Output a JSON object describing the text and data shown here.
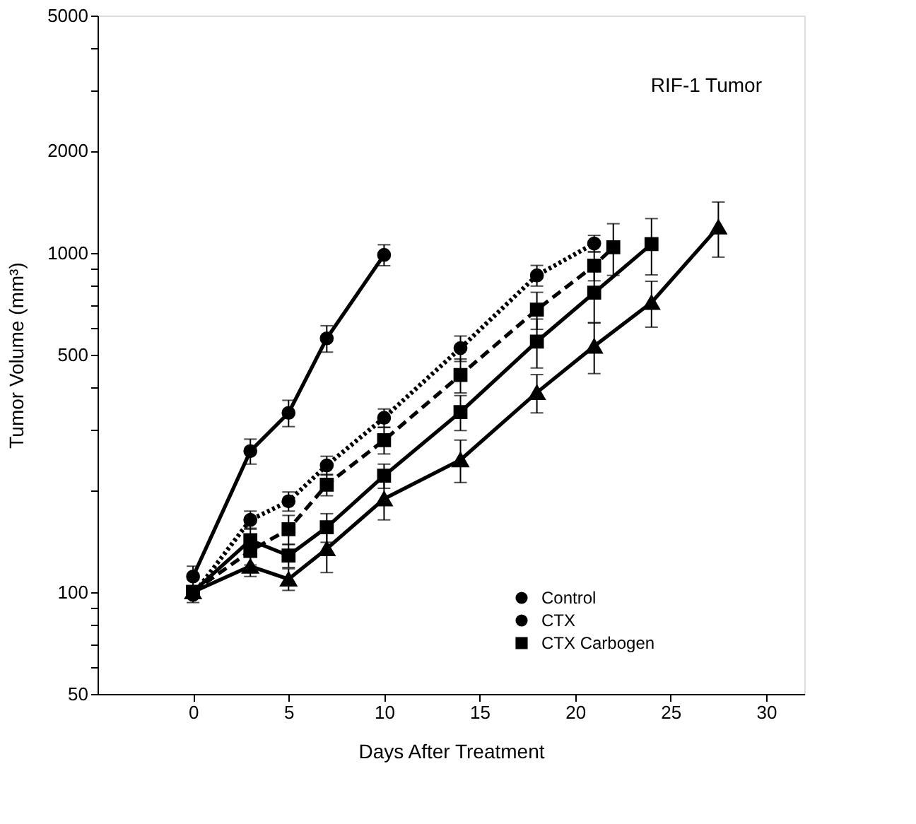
{
  "chart_data": {
    "type": "line",
    "xlabel": "Days After Treatment",
    "ylabel": "Tumor Volume (mm³)",
    "log": "y",
    "grid": false,
    "legend": "bottom right",
    "annotations": [
      "RIF-1 Tumor"
    ],
    "xlim": [
      -5,
      32
    ],
    "xticks": [
      0,
      5,
      10,
      15,
      20,
      25,
      30
    ],
    "ylim": [
      50,
      5000
    ],
    "yticks": [
      50,
      {
        "value": 60,
        "label": null
      },
      {
        "value": 70,
        "label": null
      },
      {
        "value": 80,
        "label": null
      },
      {
        "value": 90,
        "label": null
      },
      100,
      {
        "value": 200,
        "label": null
      },
      {
        "value": 300,
        "label": null
      },
      {
        "value": 400,
        "label": null
      },
      500,
      {
        "value": 600,
        "label": null
      },
      {
        "value": 700,
        "label": null
      },
      {
        "value": 800,
        "label": null
      },
      {
        "value": 900,
        "label": null
      },
      {
        "value": 1000,
        "label": "1000"
      },
      {
        "value": 2000,
        "label": "2000"
      },
      {
        "value": 3000,
        "label": null
      },
      {
        "value": 4000,
        "label": null
      },
      {
        "value": 5000,
        "label": "5000"
      }
    ],
    "series": [
      {
        "name": "Control",
        "color": "#000000",
        "marker": "circle",
        "line_style": "solid",
        "x": [
          0,
          3,
          5,
          7,
          10
        ],
        "values": [
          111,
          260,
          337,
          559,
          985
        ],
        "errors": [
          8,
          22,
          30,
          50,
          70
        ]
      },
      {
        "name": "CTX",
        "color": "#000000",
        "marker": "circle",
        "line_style": "dotted",
        "x": [
          0,
          3,
          5,
          7,
          10,
          14,
          18,
          21
        ],
        "values": [
          98,
          163,
          185,
          236,
          326,
          523,
          857,
          1064
        ],
        "errors": [
          5,
          10,
          12,
          15,
          20,
          45,
          60,
          60
        ]
      },
      {
        "color": "#000000",
        "marker": "square",
        "line_style": "dashed",
        "x": [
          0,
          3,
          5,
          7,
          10,
          14,
          18,
          21,
          22
        ],
        "values": [
          100,
          132,
          153,
          207,
          280,
          436,
          679,
          916,
          1037
        ],
        "errors": [
          null,
          12,
          15,
          15,
          25,
          50,
          85,
          90,
          180
        ]
      },
      {
        "name": "CTX Carbogen",
        "color": "#000000",
        "marker": "square",
        "line_style": "solid",
        "x": [
          0,
          3,
          5,
          7,
          10,
          14,
          18,
          21,
          24
        ],
        "values": [
          100,
          142,
          128,
          155,
          220,
          339,
          547,
          762,
          1060
        ],
        "errors": [
          null,
          12,
          10,
          15,
          18,
          40,
          90,
          140,
          200
        ]
      },
      {
        "color": "#000000",
        "marker": "triangle",
        "line_style": "solid",
        "x": [
          0,
          3,
          5,
          7,
          10,
          14,
          18,
          21,
          24,
          27.5
        ],
        "values": [
          100,
          119,
          109,
          134,
          188,
          245,
          387,
          530,
          713,
          1190
        ],
        "errors": [
          null,
          8,
          8,
          20,
          25,
          35,
          50,
          90,
          110,
          220
        ]
      }
    ]
  }
}
